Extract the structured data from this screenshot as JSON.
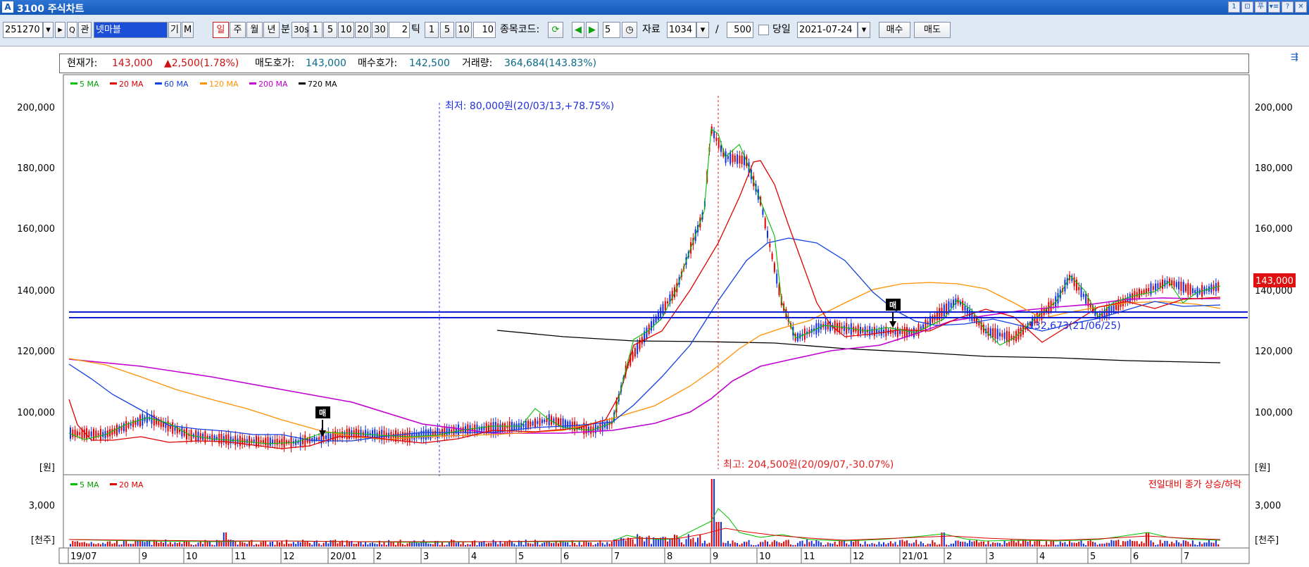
{
  "window": {
    "title": "3100 주식차트",
    "logo_glyph": "A",
    "controls": [
      "1",
      "⊡",
      "푸",
      "▾≡",
      "?",
      "✕"
    ]
  },
  "toolbar": {
    "stock_code": "251270",
    "stock_name": "넷마블",
    "btn_find": "Q",
    "btn_relation": "관",
    "btn_gi": "기",
    "btn_m": "M",
    "periods": [
      "일",
      "주",
      "월",
      "년"
    ],
    "period_selected": "일",
    "minute_label": "분",
    "minute_opts": [
      "30s",
      "1",
      "5",
      "10",
      "20",
      "30"
    ],
    "tick_value": "2",
    "tick_label": "틱",
    "tick_opts": [
      "1",
      "5",
      "10"
    ],
    "tick_count": "10",
    "code_label": "종목코드:",
    "step_value": "5",
    "data_label": "자료",
    "data_count": "1034",
    "slash": "/",
    "view_count": "500",
    "today_label": "당일",
    "date": "2021-07-24",
    "buy_label": "매수",
    "sell_label": "매도"
  },
  "info": {
    "price_label": "현재가:",
    "price": "143,000",
    "change": "▲2,500(1.78%)",
    "ask_label": "매도호가:",
    "ask": "143,000",
    "bid_label": "매수호가:",
    "bid": "142,500",
    "volume_label": "거래량:",
    "volume": "364,684(143.83%)"
  },
  "legend": [
    {
      "label": "5 MA",
      "color": "#00c000"
    },
    {
      "label": "20 MA",
      "color": "#e00000"
    },
    {
      "label": "60 MA",
      "color": "#1040e0"
    },
    {
      "label": "120 MA",
      "color": "#ff9000"
    },
    {
      "label": "200 MA",
      "color": "#c000d0"
    },
    {
      "label": "720 MA",
      "color": "#000000"
    }
  ],
  "volume_legend": [
    {
      "label": "5 MA",
      "color": "#00c000"
    },
    {
      "label": "20 MA",
      "color": "#e00000"
    }
  ],
  "annotations": {
    "low": "최저: 80,000원(20/03/13,+78.75%)",
    "high": "최고: 204,500원(20/09/07,-30.07%)",
    "volume_note": "전일대비 종가 상승/하락",
    "trend_label": "132,673(21/06/25)",
    "marker": "매"
  },
  "axes": {
    "price_ticks": [
      "200,000",
      "180,000",
      "160,000",
      "140,000",
      "120,000",
      "100,000"
    ],
    "price_unit": "[원]",
    "volume_ticks": [
      "3,000"
    ],
    "volume_unit": "[천주]",
    "current_price_tag": "143,000",
    "months": [
      "19/07",
      "9",
      "10",
      "11",
      "12",
      "20/01",
      "2",
      "3",
      "4",
      "5",
      "6",
      "7",
      "8",
      "9",
      "10",
      "11",
      "12",
      "21/01",
      "2",
      "3",
      "4",
      "5",
      "6",
      "7"
    ]
  },
  "colors": {
    "up": "#e00000",
    "down": "#1030e0",
    "ma5": "#00c000",
    "ma20": "#e00000",
    "ma60": "#1040e0",
    "ma120": "#ff9000",
    "ma200": "#c000d0",
    "ma720": "#000000"
  }
}
